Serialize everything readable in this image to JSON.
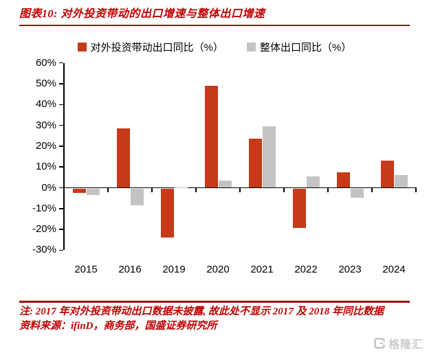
{
  "figure": {
    "title": "图表10: 对外投资带动的出口增速与整体出口增速",
    "note": "注: 2017 年对外投资带动出口数据未披露, 故此处不显示 2017 及 2018 年同比数据",
    "source": "资料来源：ifinD，商务部，国盛证券研究所",
    "accent_color": "#c00000",
    "watermark_text": "格隆汇"
  },
  "chart_data": {
    "type": "bar",
    "title": "对外投资带动的出口增速与整体出口增速",
    "categories": [
      "2015",
      "2016",
      "2019",
      "2020",
      "2021",
      "2022",
      "2023",
      "2024"
    ],
    "series": [
      {
        "name": "对外投资带动出口同比（%）",
        "color": "#c53a18",
        "values": [
          -2,
          28.5,
          -23.5,
          49,
          23.5,
          -19,
          7.5,
          13
        ]
      },
      {
        "name": "整体出口同比（%）",
        "color": "#c3c3c3",
        "values": [
          -3,
          -8,
          0.3,
          3.5,
          29.5,
          5.5,
          -4.5,
          6
        ]
      }
    ],
    "xlabel": "",
    "ylabel": "",
    "ylim": [
      -30,
      60
    ],
    "ytick_step": 10,
    "ytick_format": "{v}%",
    "legend_position": "top",
    "grid": false,
    "axis_color": "#000000"
  }
}
